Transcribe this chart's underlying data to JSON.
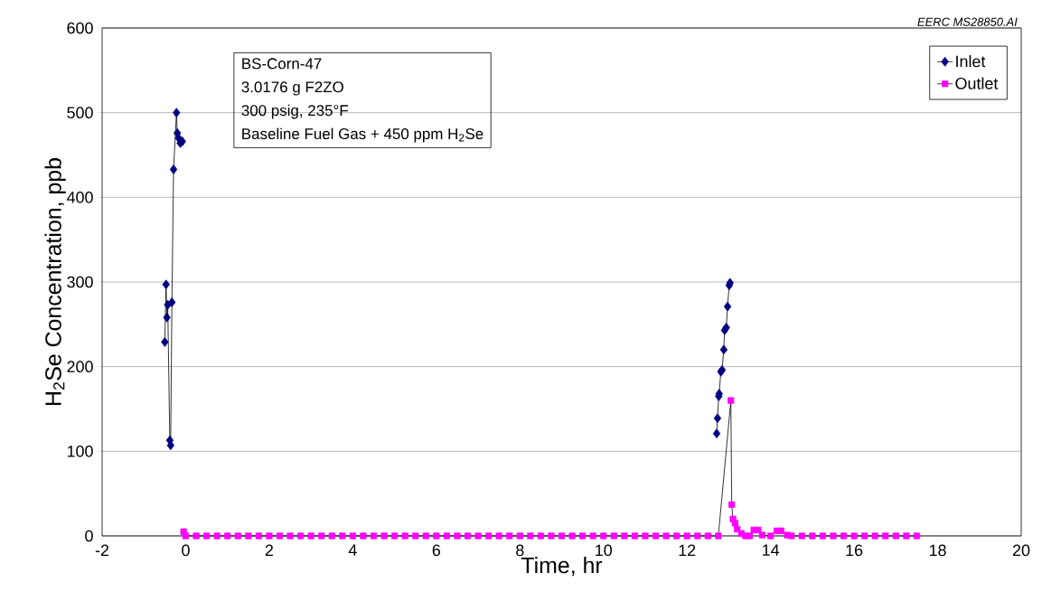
{
  "chart_data": {
    "type": "line",
    "xlabel": "Time, hr",
    "ylabel": "H$_{2}$Se Concentration, ppb",
    "annotations": [
      "BS-Corn-47",
      "3.0176 g F2ZO",
      "300 psig, 235°F",
      "Baseline Fuel Gas + 450 ppm H$_{2}$Se",
      "EERC MS28850.AI"
    ],
    "xlim": [
      -2,
      20
    ],
    "ylim": [
      0,
      600
    ],
    "xticks": [
      -2,
      0,
      2,
      4,
      6,
      8,
      10,
      12,
      14,
      16,
      18,
      20
    ],
    "yticks": [
      0,
      100,
      200,
      300,
      400,
      500,
      600
    ],
    "grid": "y",
    "legend": "top right",
    "series": [
      {
        "name": "Inlet",
        "color": "#000080",
        "marker": "diamond",
        "x": [
          -0.5,
          -0.47,
          -0.45,
          -0.43,
          -0.38,
          -0.36,
          -0.33,
          -0.29,
          -0.22,
          -0.2,
          -0.17,
          -0.13,
          -0.08,
          6,
          12.71,
          12.73,
          12.76,
          12.77,
          12.81,
          12.84,
          12.88,
          12.9,
          12.94,
          12.97,
          13.01,
          13.03
        ],
        "values": [
          229,
          297,
          258,
          273,
          113,
          107,
          276,
          433,
          500,
          476,
          470,
          464,
          466,
          null,
          121,
          139,
          165,
          168,
          194,
          196,
          220,
          243,
          246,
          271,
          296,
          299
        ]
      },
      {
        "name": "Outlet",
        "color": "#ff00ff",
        "marker": "square",
        "x": [
          -0.05,
          0,
          0.25,
          0.5,
          0.75,
          1,
          1.25,
          1.5,
          1.75,
          2,
          2.25,
          2.5,
          2.75,
          3,
          3.25,
          3.5,
          3.75,
          4,
          4.25,
          4.5,
          4.75,
          5,
          5.25,
          5.5,
          5.75,
          6,
          6.25,
          6.5,
          6.75,
          7,
          7.25,
          7.5,
          7.75,
          8,
          8.25,
          8.5,
          8.75,
          9,
          9.25,
          9.5,
          9.75,
          10,
          10.25,
          10.5,
          10.75,
          11,
          11.25,
          11.5,
          11.75,
          12,
          12.25,
          12.5,
          12.75,
          13.05,
          13.07,
          13.1,
          13.15,
          13.2,
          13.3,
          13.4,
          13.5,
          13.6,
          13.7,
          13.8,
          14,
          14.15,
          14.25,
          14.4,
          14.5,
          14.75,
          15,
          15.25,
          15.5,
          15.75,
          16,
          16.25,
          16.5,
          16.75,
          17,
          17.25,
          17.5
        ],
        "values": [
          5,
          0,
          0,
          0,
          0,
          0,
          0,
          0,
          0,
          0,
          0,
          0,
          0,
          0,
          0,
          0,
          0,
          0,
          0,
          0,
          0,
          0,
          0,
          0,
          0,
          0,
          0,
          0,
          0,
          0,
          0,
          0,
          0,
          0,
          0,
          0,
          0,
          0,
          0,
          0,
          0,
          0,
          0,
          0,
          0,
          0,
          0,
          0,
          0,
          0,
          0,
          0,
          0,
          160,
          37,
          20,
          15,
          8,
          3,
          0,
          0,
          7,
          7,
          1,
          0,
          6,
          6,
          1,
          0,
          0,
          0,
          0,
          0,
          0,
          0,
          0,
          0,
          0,
          0,
          0,
          0
        ]
      }
    ]
  }
}
